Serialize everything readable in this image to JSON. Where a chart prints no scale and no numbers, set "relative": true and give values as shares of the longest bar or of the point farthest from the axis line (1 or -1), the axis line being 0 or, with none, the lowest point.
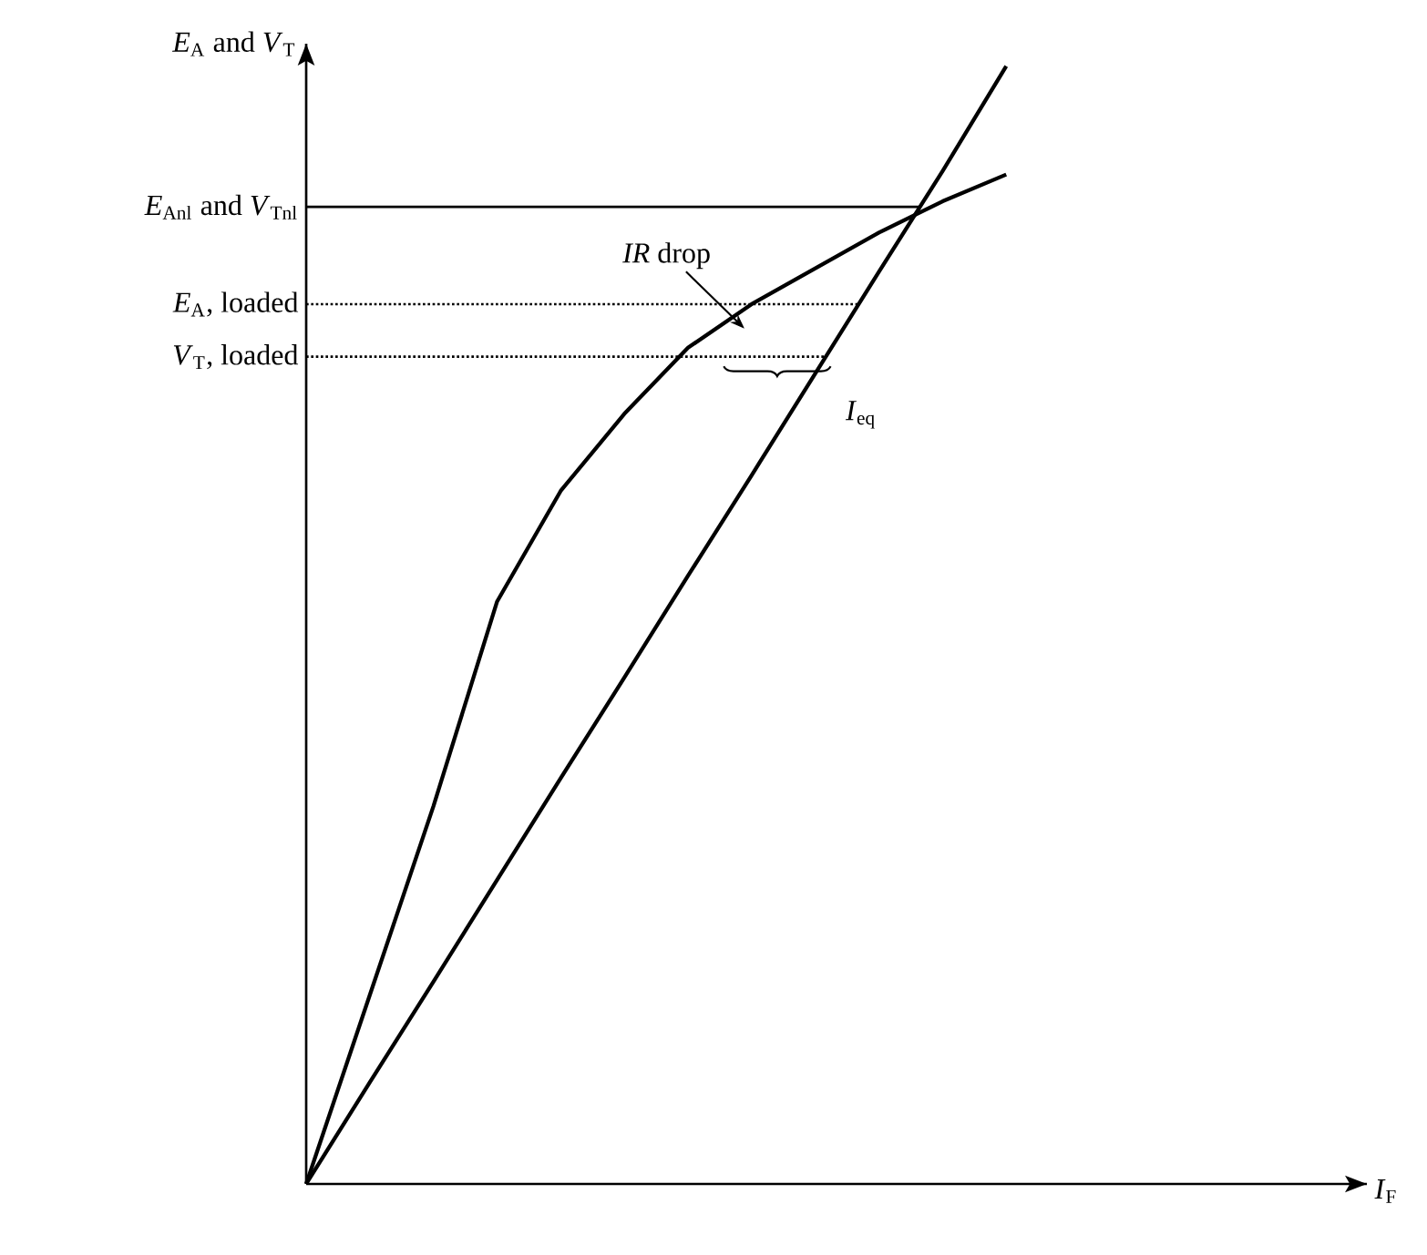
{
  "chart_data": {
    "type": "line",
    "relative": true,
    "ylabel": "*E*$_{A}$ and *V*$_{T}$",
    "marker": "none",
    "line_style": "solid",
    "categories": [
      null,
      null,
      null,
      null,
      null,
      null,
      null,
      null,
      null,
      null,
      null,
      null
    ],
    "series": [
      {
        "color": "#000000",
        "values": [
          0,
          0.169,
          0.338,
          0.521,
          0.62,
          0.689,
          0.748,
          0.787,
          0.819,
          0.851,
          0.879,
          0.903
        ]
      },
      {
        "color": "#000000",
        "values": [
          0,
          0.091,
          0.181,
          0.272,
          0.363,
          0.453,
          0.544,
          0.634,
          0.725,
          0.816,
          0.906,
          1
        ]
      }
    ],
    "ref_lines": [
      {
        "axis": "y",
        "value": 0.874,
        "label": "*E*$_{Anl}$ and *V*$_{Tnl}$",
        "line_style": "solid"
      },
      {
        "axis": "y",
        "value": 0.787,
        "label": "*E*$_{A}$, loaded",
        "line_style": "dotted"
      },
      {
        "axis": "y",
        "value": 0.74,
        "label": "*V*$_{T}$, loaded",
        "line_style": "dotted"
      }
    ],
    "annotations": [
      {
        "text": "*IR* drop",
        "y": 0.787
      },
      "*I*$_{eq}$",
      "*I*$_{F}$"
    ]
  }
}
